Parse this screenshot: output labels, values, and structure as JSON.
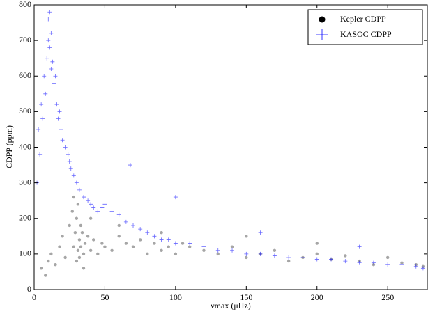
{
  "chart_data": {
    "type": "scatter",
    "xlabel": "νmax (μHz)",
    "ylabel": "CDPP (ppm)",
    "xlim": [
      0,
      278
    ],
    "ylim": [
      0,
      800
    ],
    "xticks": [
      0,
      50,
      100,
      150,
      200,
      250
    ],
    "yticks": [
      0,
      100,
      200,
      300,
      400,
      500,
      600,
      700,
      800
    ],
    "legend": "upper right",
    "series": [
      {
        "name": "Kepler CDPP",
        "color": "#000000",
        "marker": "circle",
        "x": [
          5,
          8,
          10,
          12,
          15,
          18,
          20,
          22,
          25,
          27,
          28,
          29,
          30,
          30,
          31,
          31,
          32,
          32,
          33,
          33,
          34,
          35,
          36,
          38,
          40,
          42,
          45,
          48,
          50,
          55,
          60,
          65,
          70,
          75,
          80,
          85,
          90,
          95,
          100,
          105,
          110,
          120,
          130,
          140,
          150,
          160,
          170,
          180,
          190,
          200,
          210,
          220,
          230,
          240,
          250,
          260,
          270,
          275,
          28,
          35,
          40,
          60,
          90,
          150,
          200
        ],
        "values": [
          60,
          40,
          80,
          100,
          70,
          120,
          150,
          90,
          180,
          220,
          120,
          160,
          80,
          200,
          110,
          240,
          140,
          90,
          180,
          120,
          160,
          100,
          130,
          150,
          110,
          140,
          100,
          130,
          120,
          110,
          150,
          130,
          120,
          140,
          100,
          130,
          110,
          120,
          100,
          130,
          120,
          110,
          100,
          120,
          90,
          100,
          110,
          80,
          90,
          100,
          85,
          95,
          80,
          70,
          90,
          75,
          70,
          65,
          260,
          60,
          200,
          180,
          160,
          150,
          130
        ]
      },
      {
        "name": "KASOC CDPP",
        "color": "#0000ff",
        "marker": "plus",
        "x": [
          2,
          3,
          4,
          5,
          6,
          7,
          8,
          9,
          10,
          10,
          11,
          11,
          12,
          12,
          13,
          14,
          15,
          16,
          17,
          18,
          19,
          20,
          22,
          24,
          25,
          26,
          28,
          30,
          32,
          35,
          38,
          40,
          42,
          45,
          48,
          50,
          55,
          60,
          65,
          70,
          75,
          80,
          85,
          90,
          95,
          100,
          110,
          120,
          130,
          140,
          150,
          160,
          170,
          180,
          190,
          200,
          210,
          220,
          230,
          240,
          250,
          260,
          270,
          275,
          68,
          100,
          160,
          230
        ],
        "values": [
          300,
          450,
          380,
          520,
          480,
          600,
          550,
          650,
          700,
          760,
          680,
          780,
          620,
          720,
          640,
          580,
          600,
          520,
          480,
          500,
          450,
          420,
          400,
          380,
          360,
          340,
          320,
          300,
          280,
          260,
          250,
          240,
          230,
          220,
          230,
          240,
          220,
          210,
          190,
          180,
          170,
          160,
          150,
          140,
          140,
          130,
          130,
          120,
          110,
          110,
          100,
          100,
          95,
          90,
          90,
          85,
          85,
          80,
          75,
          75,
          70,
          70,
          65,
          60,
          350,
          260,
          160,
          120
        ]
      }
    ]
  }
}
